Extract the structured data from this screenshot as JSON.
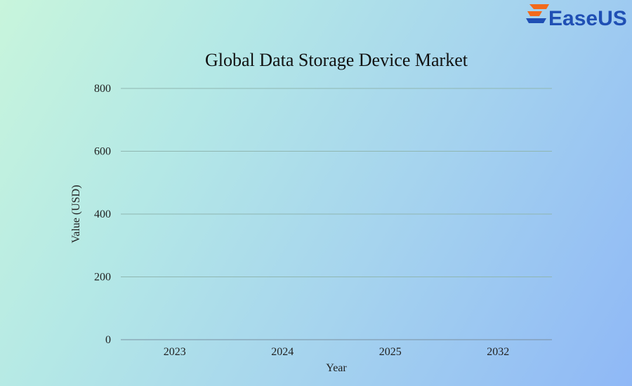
{
  "brand": {
    "name": "EaseUS",
    "colors": {
      "accent": "#f26a1b",
      "text": "#1f4fb4"
    }
  },
  "chart_data": {
    "type": "bar",
    "title": "Global Data Storage Device Market",
    "xlabel": "Year",
    "ylabel": "Value (USD)",
    "categories": [
      "2023",
      "2024",
      "2025",
      "2032"
    ],
    "values": [
      null,
      null,
      null,
      null
    ],
    "ylim": [
      0,
      800
    ],
    "yticks": [
      0,
      200,
      400,
      600,
      800
    ],
    "grid": true,
    "legend": "none"
  }
}
